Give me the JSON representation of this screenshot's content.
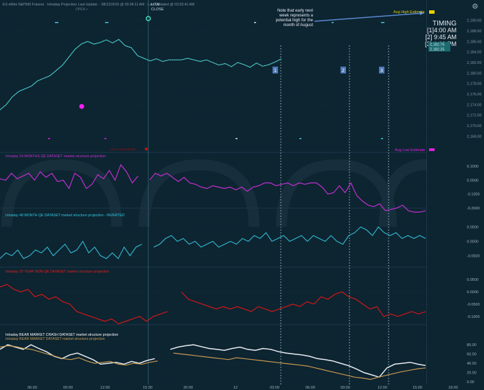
{
  "header": {
    "title": "ES eMini S&P500 Futures · Intraday Projection Last Update: · 08/12/2016 @ 03:34:11 AM · Last Updated @ 03:33:41 AM",
    "subtitle": "OPEN +",
    "low_label": "LOW",
    "close_label": "CLOSE"
  },
  "annotation": {
    "lines": [
      "Note that early next",
      "week represents a",
      "potential high for the",
      "month of August"
    ]
  },
  "timing": {
    "title": "TIMING",
    "items": [
      "[1]4:00 AM",
      "[2] 9:45 AM",
      "[3] 1:00 PM"
    ]
  },
  "markers": [
    "1",
    "2",
    "3"
  ],
  "legend": {
    "high": "Aug High Estimate",
    "low": "Aug Low Estimate",
    "low_left": "AUG Low Estimate",
    "colors": {
      "high": "#e8d000",
      "low": "#e020e0",
      "price": "#2ab0b0"
    }
  },
  "chart_data": [
    {
      "type": "line",
      "title": "",
      "price_labels": [
        "2,190.00",
        "2,188.00",
        "2,186.00",
        "2,184.00",
        "2,182.00",
        "2,180.00",
        "2,178.00",
        "2,176.00",
        "2,174.00",
        "2,172.00",
        "2,170.00",
        "2,168.00"
      ],
      "current_labels": [
        "2,182.75",
        "2,182.25"
      ],
      "ylim": [
        2167,
        2191
      ],
      "series": [
        {
          "values": [
            2173,
            2174,
            2175.5,
            2176.5,
            2177,
            2177.5,
            2178.5,
            2179,
            2179.5,
            2180.5,
            2181.5,
            2183,
            2184.5,
            2185.5,
            2186,
            2185.5,
            2185.8,
            2186.3,
            2185.7,
            2186.4,
            2185.2,
            2184.8,
            2183.3,
            2182.8,
            2182.3,
            2182.7,
            2182.2,
            2182.5,
            2182.5,
            2182.5,
            2182.8,
            2182.5,
            2182.2,
            2182.5,
            2182.0,
            2181.5,
            2181.8,
            2181.2,
            2182.0,
            2181.6,
            2181.1,
            2181.9,
            2181.3,
            2181.6,
            2182.1,
            2182.7
          ]
        }
      ]
    },
    {
      "type": "line",
      "title": "Intraday 24 MONTHS QE DATASET market structure projection",
      "tick_labels": [
        "0.1000",
        "0.0000",
        "-0.1000",
        "-0.2000"
      ],
      "ylim": [
        -0.25,
        0.15
      ],
      "series": [
        {
          "values": [
            0.01,
            0.0,
            0.05,
            0.01,
            0.03,
            0.05,
            0.0,
            0.06,
            0.02,
            0.05,
            -0.01,
            0.0,
            -0.06,
            0.05,
            0.02,
            -0.06,
            -0.03,
            0.04,
            0.01,
            0.07,
            0.0,
            0.11,
            0.06,
            -0.02,
            0.03,
            null,
            0.0,
            0.05,
            0.03,
            0.05,
            0.02,
            -0.01,
            0.02,
            -0.02,
            -0.03,
            -0.05,
            -0.06,
            -0.04,
            -0.05,
            -0.06,
            -0.05,
            -0.07,
            -0.05,
            -0.08,
            -0.05,
            -0.04,
            -0.02,
            -0.02,
            -0.04,
            -0.03,
            -0.02,
            -0.04,
            -0.02,
            -0.03,
            -0.02,
            -0.02,
            -0.05,
            -0.1,
            -0.09,
            -0.04,
            -0.09,
            -0.02,
            -0.11,
            -0.15,
            -0.18,
            -0.19,
            -0.17,
            -0.22,
            -0.21,
            -0.2,
            -0.18,
            -0.22,
            -0.23,
            -0.23,
            -0.22
          ]
        }
      ]
    },
    {
      "type": "line",
      "title": "Intraday 48 MONTH QE DATASET market structure projection - INVERTED",
      "tick_labels": [
        "0.0500",
        "0.0000",
        "-0.0500"
      ],
      "ylim": [
        -0.08,
        0.08
      ],
      "series": [
        {
          "values": [
            -0.06,
            -0.04,
            -0.05,
            -0.03,
            -0.06,
            -0.05,
            -0.03,
            -0.04,
            -0.02,
            -0.05,
            -0.03,
            -0.01,
            -0.04,
            -0.03,
            0.0,
            -0.04,
            -0.02,
            -0.05,
            -0.06,
            -0.04,
            -0.06,
            -0.02,
            -0.05,
            -0.02,
            -0.01,
            null,
            -0.02,
            -0.01,
            0.01,
            0.02,
            0.0,
            0.01,
            -0.01,
            0.0,
            -0.02,
            -0.01,
            0.0,
            -0.02,
            -0.01,
            0.0,
            -0.01,
            0.01,
            0.0,
            0.02,
            0.01,
            0.03,
            0.0,
            0.01,
            0.02,
            0.0,
            0.01,
            0.02,
            0.0,
            0.02,
            0.01,
            0.0,
            0.02,
            0.0,
            -0.01,
            0.02,
            0.03,
            0.05,
            0.04,
            0.02,
            0.05,
            0.03,
            0.02,
            0.03,
            0.01,
            0.02,
            0.01,
            0.02,
            0.01
          ]
        }
      ]
    },
    {
      "type": "line",
      "title": "Intraday 20 YEAR NON-QE DATASET market structure  projection",
      "tick_labels": [
        "0.0500",
        "0.0000",
        "-0.0500",
        "-0.1000"
      ],
      "ylim": [
        -0.12,
        0.07
      ],
      "series": [
        {
          "values": [
            0.02,
            0.03,
            0.01,
            0.0,
            0.01,
            -0.02,
            -0.01,
            -0.03,
            -0.02,
            -0.04,
            -0.05,
            -0.08,
            -0.09,
            -0.1,
            -0.11,
            -0.12,
            -0.11,
            -0.13,
            -0.12,
            -0.11,
            -0.1,
            -0.12,
            -0.1,
            -0.09,
            -0.08,
            null,
            0.0,
            -0.03,
            -0.04,
            -0.05,
            -0.06,
            -0.07,
            -0.06,
            -0.07,
            -0.06,
            -0.07,
            -0.08,
            -0.06,
            -0.07,
            -0.08,
            -0.07,
            -0.06,
            -0.05,
            -0.06,
            -0.04,
            -0.05,
            -0.02,
            -0.03,
            -0.01,
            0.0,
            -0.02,
            -0.03,
            -0.05,
            -0.07,
            -0.06,
            -0.1,
            -0.09,
            -0.1,
            -0.09,
            -0.08,
            -0.09,
            -0.08
          ]
        }
      ]
    },
    {
      "type": "line",
      "title": "Intraday BEAR MARKET CRASH  DATASET  market structure projection",
      "subtitle": "Intraday BEAR MARKET DATASET  market structure projection",
      "tick_labels": [
        "80.00",
        "60.00",
        "40.00",
        "20.00",
        "0.00"
      ],
      "ylim": [
        0,
        95
      ],
      "series": [
        {
          "values": [
            70,
            80,
            75,
            70,
            80,
            72,
            65,
            55,
            50,
            58,
            62,
            55,
            48,
            38,
            40,
            42,
            38,
            44,
            40,
            46,
            50,
            null,
            70,
            75,
            78,
            80,
            76,
            72,
            70,
            68,
            72,
            75,
            70,
            68,
            72,
            70,
            65,
            62,
            60,
            58,
            55,
            50,
            48,
            45,
            40,
            35,
            28,
            20,
            15,
            10,
            30,
            38,
            40,
            42,
            38,
            35
          ]
        },
        {
          "values": [
            75,
            78,
            76,
            72,
            70,
            65,
            60,
            55,
            50,
            48,
            52,
            45,
            40,
            42,
            44,
            38,
            36,
            40,
            38,
            42,
            45,
            null,
            62,
            60,
            58,
            56,
            54,
            52,
            50,
            48,
            52,
            50,
            48,
            46,
            44,
            42,
            40,
            38,
            36,
            34,
            30,
            26,
            22,
            18,
            14,
            10,
            8,
            5,
            10,
            14,
            18,
            22,
            25,
            28,
            30
          ]
        }
      ]
    }
  ],
  "x_ticks": [
    "06:00",
    "09:00",
    "12:00",
    "15:30",
    "20:00",
    "12",
    "03:00",
    "06:00",
    "09:00",
    "12:00",
    "15:00",
    "18:00"
  ]
}
